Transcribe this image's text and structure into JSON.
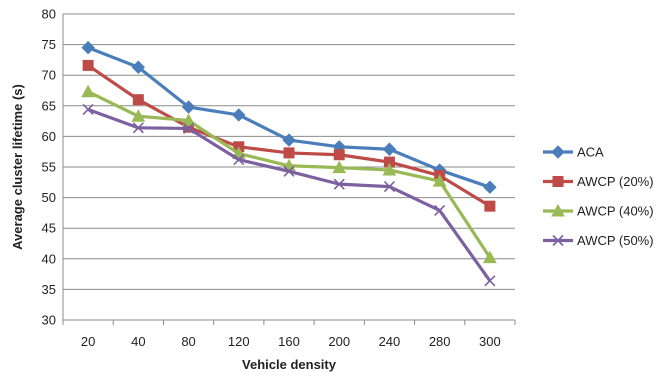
{
  "chart_data": {
    "type": "line",
    "title": "",
    "xlabel": "Vehicle density",
    "ylabel": "Average cluster lifetime (s)",
    "categories": [
      "20",
      "40",
      "80",
      "120",
      "160",
      "200",
      "240",
      "280",
      "300"
    ],
    "ylim": [
      30,
      80
    ],
    "yticks": [
      30,
      35,
      40,
      45,
      50,
      55,
      60,
      65,
      70,
      75,
      80
    ],
    "grid": "horizontal",
    "legend_position": "right",
    "series": [
      {
        "name": "ACA",
        "color": "#4a7ebb",
        "marker": "diamond",
        "values": [
          74.5,
          71.3,
          64.8,
          63.5,
          59.4,
          58.3,
          57.9,
          54.5,
          51.7
        ]
      },
      {
        "name": "AWCP (20%)",
        "color": "#be4b48",
        "marker": "square",
        "values": [
          71.6,
          66.0,
          61.5,
          58.3,
          57.3,
          57.0,
          55.8,
          53.6,
          48.6
        ]
      },
      {
        "name": "AWCP (40%)",
        "color": "#98b954",
        "marker": "triangle",
        "values": [
          67.3,
          63.3,
          62.6,
          57.2,
          55.2,
          54.9,
          54.5,
          52.7,
          40.2
        ]
      },
      {
        "name": "AWCP (50%)",
        "color": "#7d60a0",
        "marker": "x",
        "values": [
          64.4,
          61.4,
          61.3,
          56.2,
          54.3,
          52.2,
          51.8,
          47.9,
          36.4
        ]
      }
    ]
  }
}
